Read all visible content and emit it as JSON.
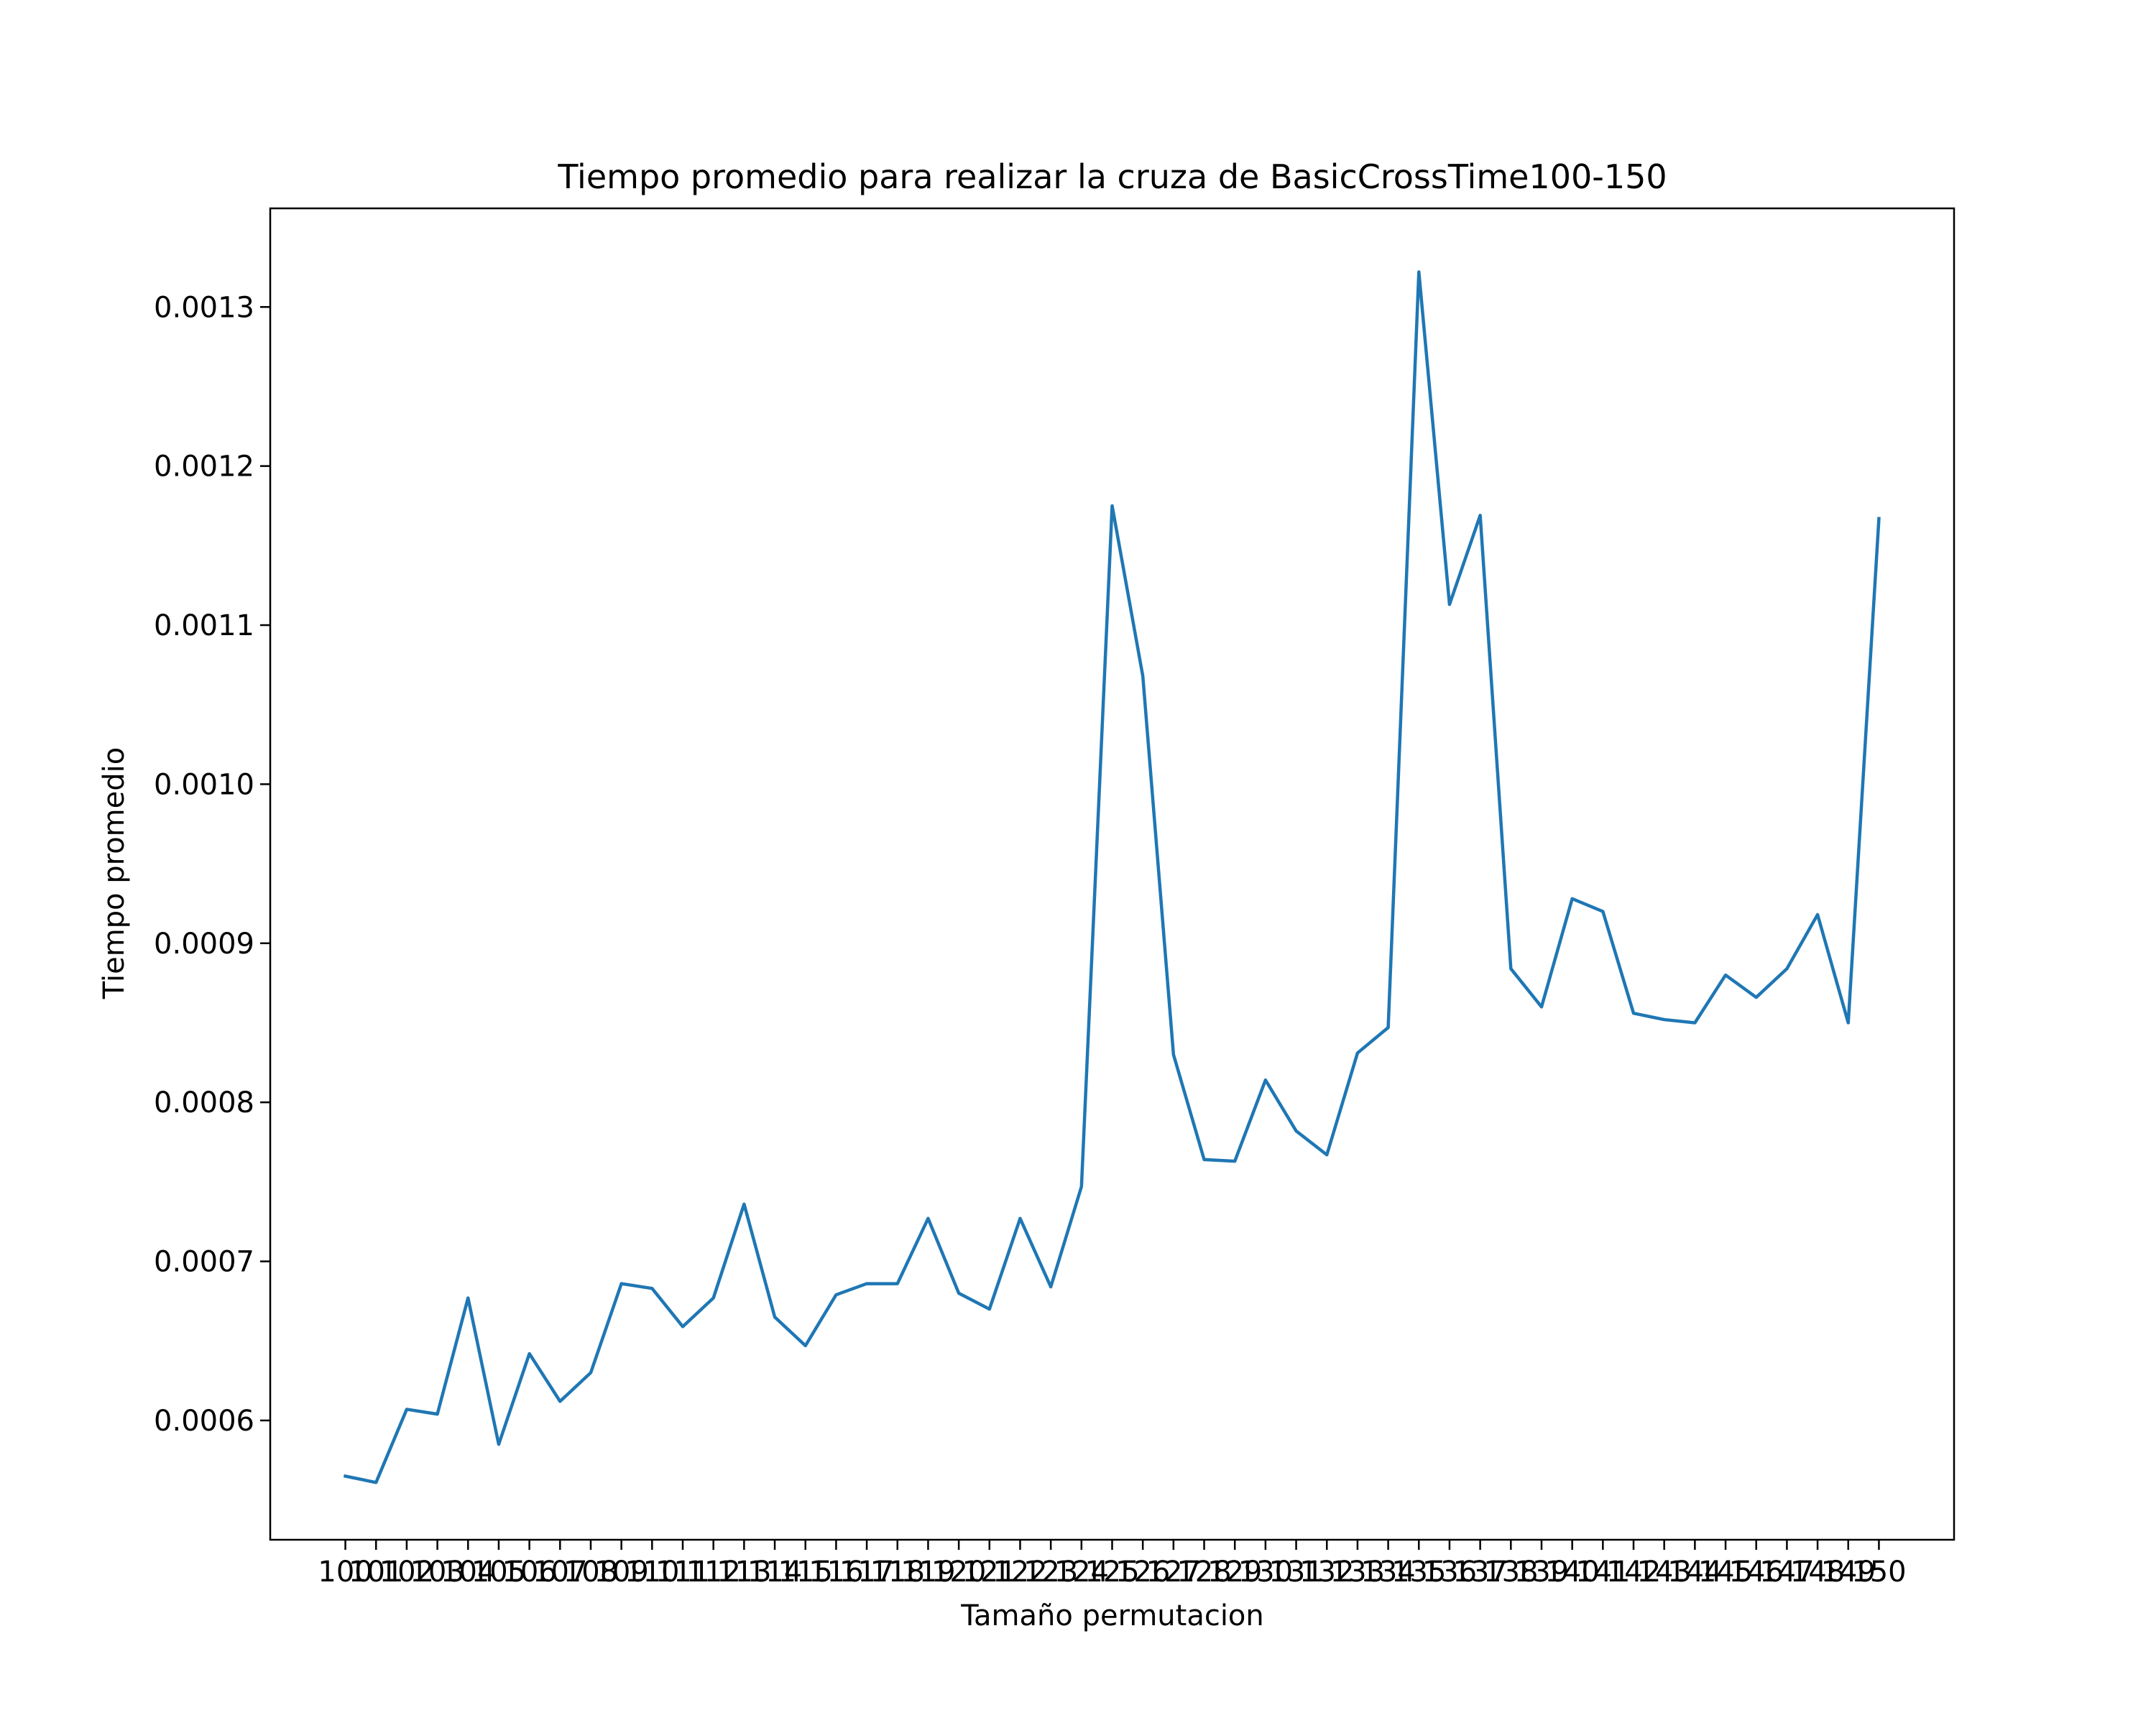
{
  "chart_data": {
    "type": "line",
    "title": "Tiempo promedio para realizar la cruza de BasicCrossTime100-150",
    "xlabel": "Tamaño permutacion",
    "ylabel": "Tiempo promedio",
    "x": [
      100,
      101,
      102,
      103,
      104,
      105,
      106,
      107,
      108,
      109,
      110,
      111,
      112,
      113,
      114,
      115,
      116,
      117,
      118,
      119,
      120,
      121,
      122,
      123,
      124,
      125,
      126,
      127,
      128,
      129,
      130,
      131,
      132,
      133,
      134,
      135,
      136,
      137,
      138,
      139,
      140,
      141,
      142,
      143,
      144,
      145,
      146,
      147,
      148,
      149,
      150
    ],
    "xticklabels": [
      "100",
      "101",
      "102",
      "103",
      "104",
      "105",
      "106",
      "107",
      "108",
      "109",
      "110",
      "111",
      "112",
      "113",
      "114",
      "115",
      "116",
      "117",
      "118",
      "119",
      "120",
      "121",
      "122",
      "123",
      "124",
      "125",
      "126",
      "127",
      "128",
      "129",
      "130",
      "131",
      "132",
      "133",
      "134",
      "135",
      "136",
      "137",
      "138",
      "139",
      "140",
      "141",
      "142",
      "143",
      "144",
      "145",
      "146",
      "147",
      "148",
      "149",
      "150"
    ],
    "yticks": [
      0.0006,
      0.0007,
      0.0008,
      0.0009,
      0.001,
      0.0011,
      0.0012,
      0.0013
    ],
    "yticklabels": [
      "0.0006",
      "0.0007",
      "0.0008",
      "0.0009",
      "0.0010",
      "0.0011",
      "0.0012",
      "0.0013"
    ],
    "xlim": [
      97.55,
      152.45
    ],
    "ylim": [
      0.000525,
      0.001362
    ],
    "grid": false,
    "series": [
      {
        "color": "#1f77b4",
        "values": [
          0.000565,
          0.000561,
          0.000607,
          0.000604,
          0.000677,
          0.000585,
          0.000642,
          0.000612,
          0.00063,
          0.000686,
          0.000683,
          0.000659,
          0.000677,
          0.000736,
          0.000665,
          0.000647,
          0.000679,
          0.000686,
          0.000686,
          0.000727,
          0.00068,
          0.00067,
          0.000727,
          0.000684,
          0.000747,
          0.001175,
          0.001068,
          0.00083,
          0.000764,
          0.000763,
          0.000814,
          0.000782,
          0.000767,
          0.000831,
          0.000847,
          0.001322,
          0.001113,
          0.001169,
          0.000884,
          0.00086,
          0.000928,
          0.00092,
          0.000856,
          0.000852,
          0.00085,
          0.00088,
          0.000866,
          0.000884,
          0.000918,
          0.00085,
          0.001167
        ]
      }
    ]
  }
}
